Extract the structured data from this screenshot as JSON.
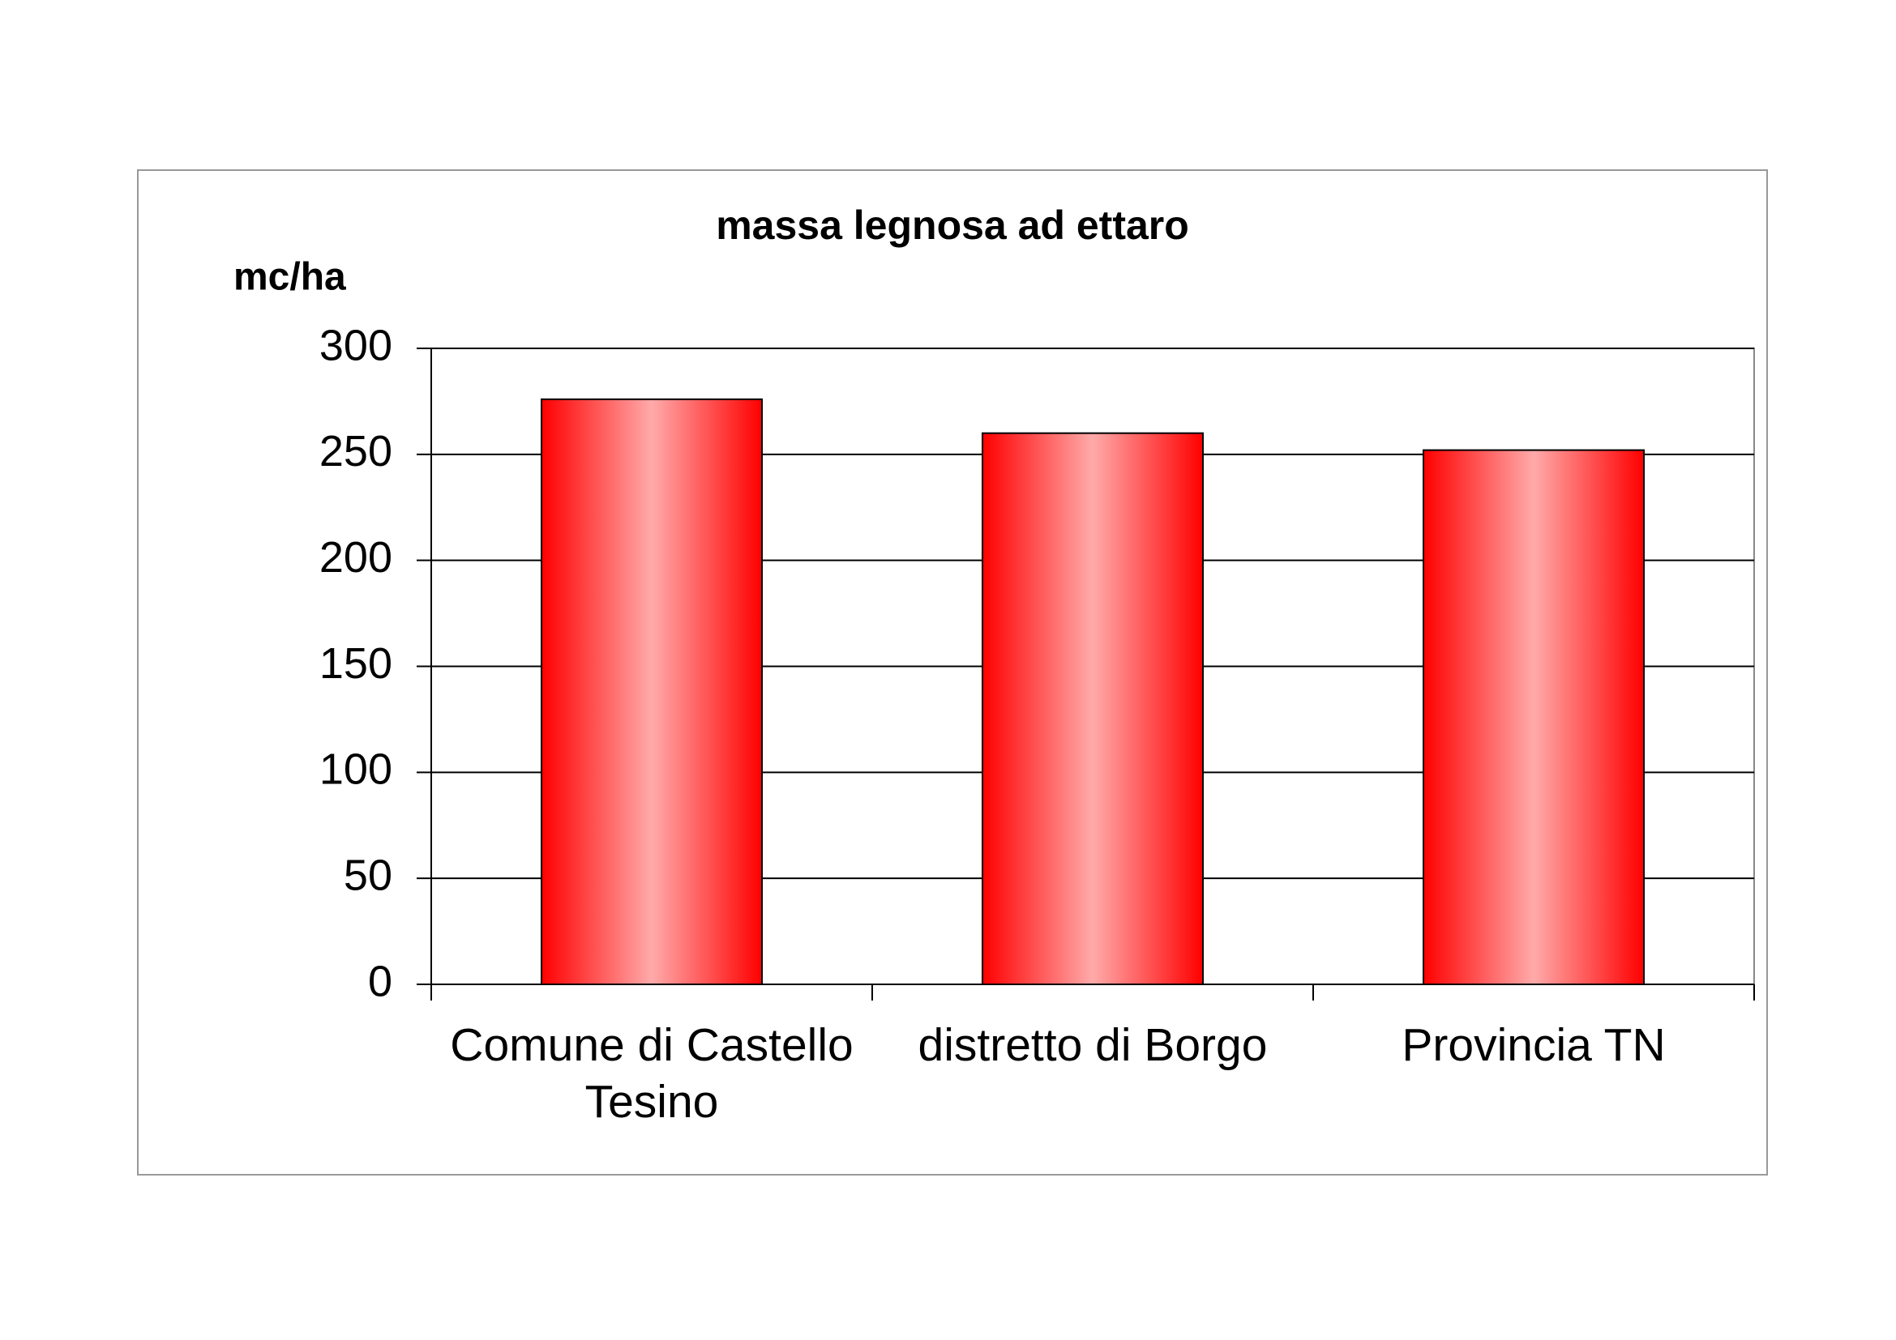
{
  "chart_data": {
    "type": "bar",
    "title": "massa legnosa ad ettaro",
    "y_label": "mc/ha",
    "categories": [
      "Comune di Castello Tesino",
      "distretto di Borgo",
      "Provincia TN"
    ],
    "values": [
      276,
      260,
      252
    ],
    "color": "#ff0000",
    "ylim": [
      0,
      300
    ],
    "yticks": [
      0,
      50,
      100,
      150,
      200,
      250,
      300
    ],
    "grid": true
  }
}
